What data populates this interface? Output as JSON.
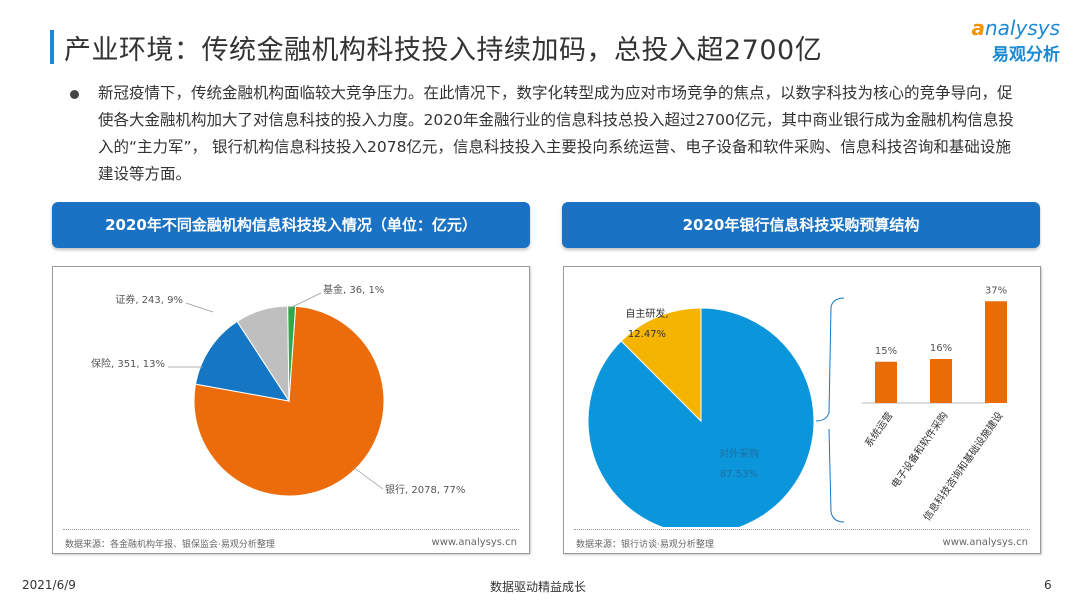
{
  "title": "产业环境：传统金融机构科技投入持续加码，总投入超2700亿",
  "logo": {
    "en_prefix": "a",
    "en_rest": "nalysys",
    "cn": "易观分析"
  },
  "paragraph": "新冠疫情下，传统金融机构面临较大竞争压力。在此情况下，数字化转型成为应对市场竞争的焦点，以数字科技为核心的竞争导向，促使各大金融机构加大了对信息科技的投入力度。2020年金融行业的信息科技总投入超过2700亿元，其中商业银行成为金融机构信息投入的“主力军”， 银行机构信息科技投入2078亿元，信息科技投入主要投向系统运营、电子设备和软件采购、信息科技咨询和基础设施建设等方面。",
  "left_panel": {
    "header": "2020年不同金融机构信息科技投入情况（单位：亿元）",
    "source": "数据来源：各金融机构年报、银保监会·易观分析整理",
    "url": "www.analysys.cn"
  },
  "right_panel": {
    "header": "2020年银行信息科技采购预算结构",
    "source": "数据来源：银行访谈·易观分析整理",
    "url": "www.analysys.cn"
  },
  "chart_data": [
    {
      "type": "pie",
      "categories": [
        "银行",
        "保险",
        "证券",
        "基金"
      ],
      "values": [
        2078,
        351,
        243,
        36
      ],
      "percents": [
        77,
        13,
        9,
        1
      ],
      "labels": [
        "银行, 2078, 77%",
        "保险, 351, 13%",
        "证券, 243, 9%",
        "基金, 36, 1%"
      ],
      "colors": [
        "#ec6c0c",
        "#1576c4",
        "#bfbfbf",
        "#2eaa4a"
      ]
    },
    {
      "type": "pie",
      "categories": [
        "对外采购",
        "自主研发"
      ],
      "values": [
        87.53,
        12.47
      ],
      "labels": [
        [
          "对外采购",
          "87.53%"
        ],
        [
          "自主研发,",
          "12.47%"
        ]
      ],
      "colors": [
        "#0b96dc",
        "#f5b400"
      ]
    },
    {
      "type": "bar",
      "categories": [
        "系统运营",
        "电子设备和软件采购",
        "信息科技咨询和基础设施建设"
      ],
      "values": [
        15,
        16,
        37
      ],
      "labels": [
        "15%",
        "16%",
        "37%"
      ],
      "color": "#ea6c06"
    }
  ],
  "watermark": "analysys 易观",
  "footer": {
    "date": "2021/6/9",
    "slogan": "数据驱动精益成长",
    "page": "6"
  }
}
